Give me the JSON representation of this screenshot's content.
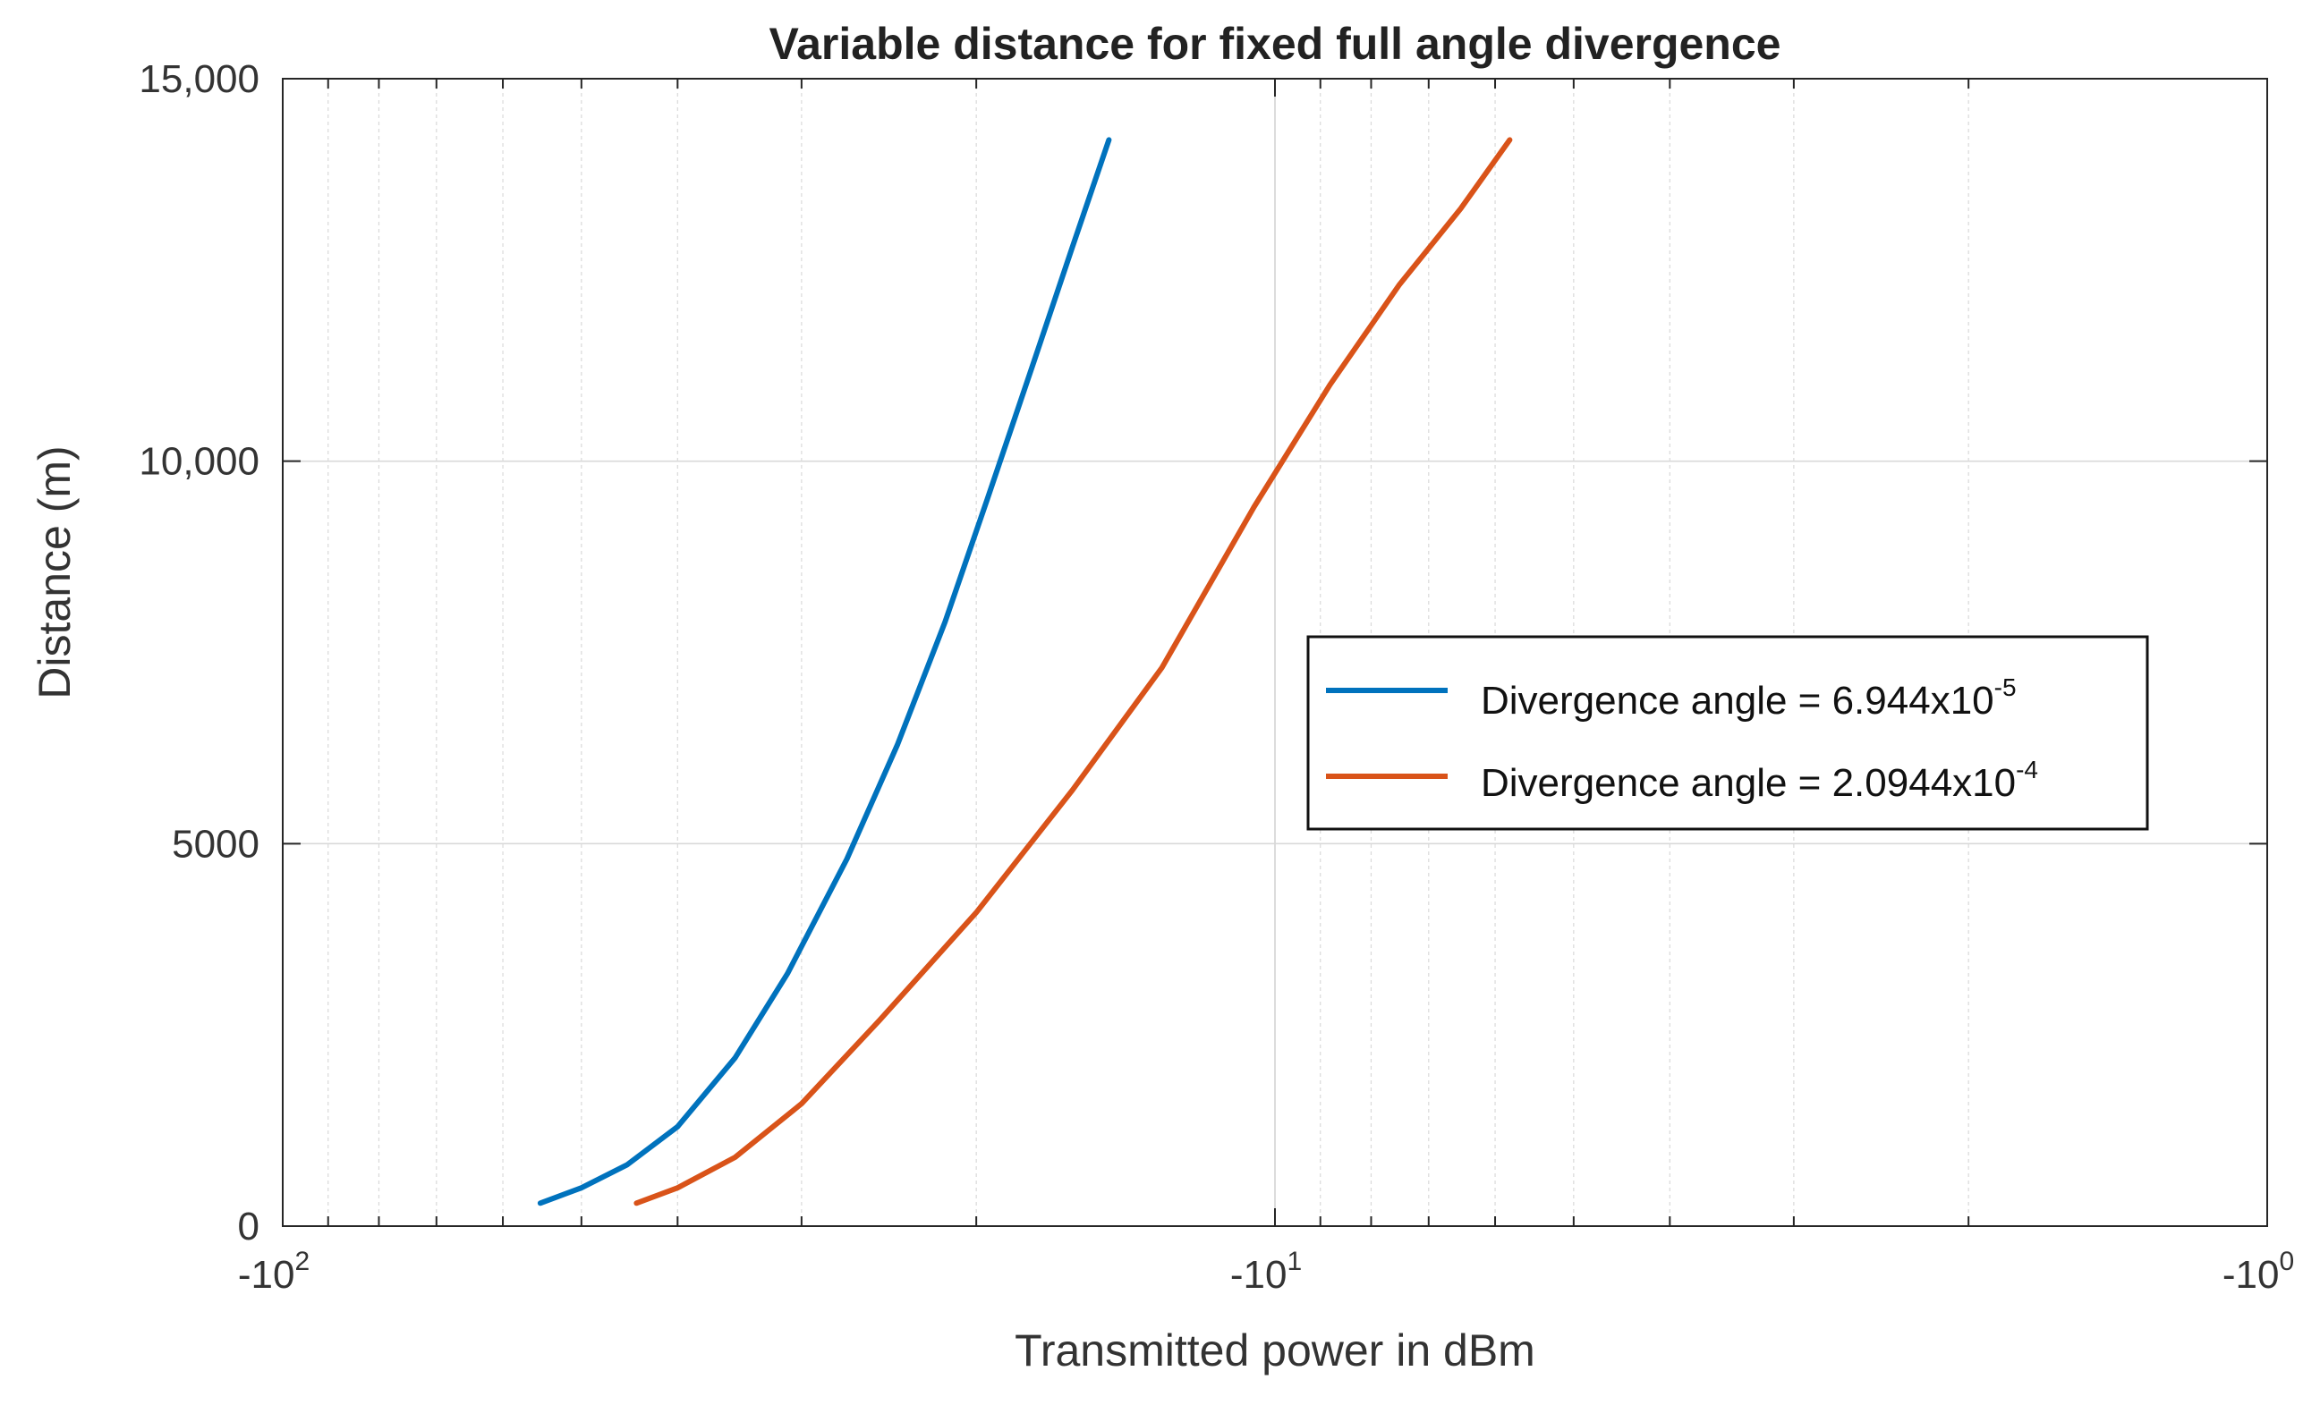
{
  "chart_data": {
    "type": "line",
    "title": "Variable distance for fixed full angle divergence",
    "xlabel": "Transmitted power in dBm",
    "ylabel": "Distance (m)",
    "x_scale": "log (negative values)",
    "xlim": [
      -100,
      -1
    ],
    "ylim": [
      0,
      15000
    ],
    "x_ticks": [
      {
        "value": -100,
        "base": "-10",
        "exp": "2"
      },
      {
        "value": -10,
        "base": "-10",
        "exp": "1"
      },
      {
        "value": -1,
        "base": "-10",
        "exp": "0"
      }
    ],
    "y_ticks": [
      {
        "value": 0,
        "label": "0"
      },
      {
        "value": 5000,
        "label": "5000"
      },
      {
        "value": 10000,
        "label": "10,000"
      },
      {
        "value": 15000,
        "label": "15,000"
      }
    ],
    "grid": true,
    "legend_position": "right",
    "series": [
      {
        "name": "Divergence angle = 6.944x10-5",
        "legend_main": "Divergence angle = 6.944x10",
        "legend_exp": "-5",
        "color": "#0072BD",
        "x": [
          -55.0,
          -50.0,
          -45.0,
          -40.0,
          -35.0,
          -31.0,
          -27.0,
          -24.0,
          -21.5,
          -19.5,
          -17.5,
          -16.0,
          -14.7
        ],
        "y": [
          300,
          500,
          800,
          1300,
          2200,
          3300,
          4800,
          6300,
          7900,
          9500,
          11300,
          12800,
          14200
        ]
      },
      {
        "name": "Divergence angle = 2.0944x10-4",
        "legend_main": "Divergence angle =  2.0944x10",
        "legend_exp": "-4",
        "color": "#D95319",
        "x": [
          -44.0,
          -40.0,
          -35.0,
          -30.0,
          -25.0,
          -20.0,
          -16.0,
          -13.0,
          -10.5,
          -8.8,
          -7.5,
          -6.5,
          -5.8
        ],
        "y": [
          300,
          500,
          900,
          1600,
          2700,
          4100,
          5700,
          7300,
          9400,
          11000,
          12300,
          13300,
          14200
        ]
      }
    ]
  }
}
